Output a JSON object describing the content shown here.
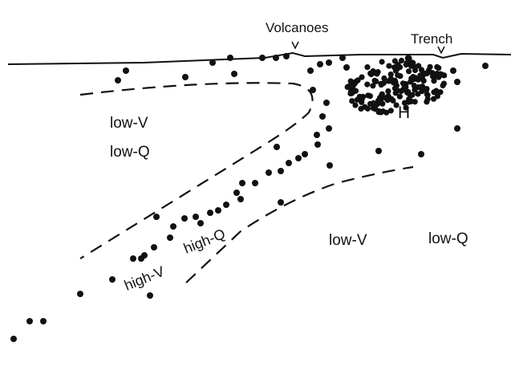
{
  "labels": {
    "volcanoes": "Volcanoes",
    "trench": "Trench",
    "h": "H",
    "low_v_left": "low-V",
    "low_q_left": "low-Q",
    "high_v": "high-V",
    "high_q": "high-Q",
    "low_v_right": "low-V",
    "low_q_right": "low-Q"
  },
  "colors": {
    "ink": "#111111",
    "background": "#ffffff"
  }
}
